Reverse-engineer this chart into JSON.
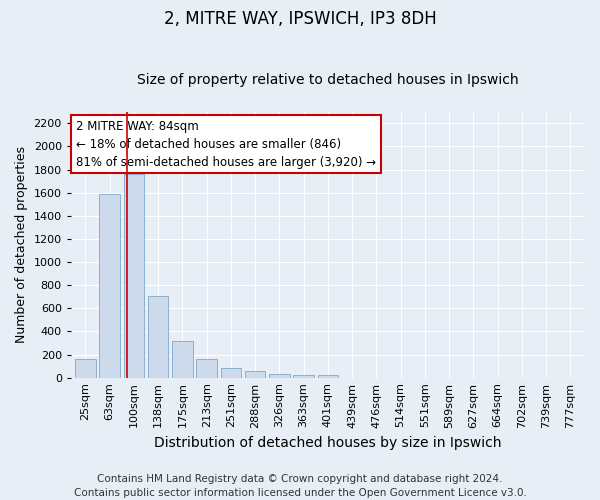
{
  "title1": "2, MITRE WAY, IPSWICH, IP3 8DH",
  "title2": "Size of property relative to detached houses in Ipswich",
  "xlabel": "Distribution of detached houses by size in Ipswich",
  "ylabel": "Number of detached properties",
  "categories": [
    "25sqm",
    "63sqm",
    "100sqm",
    "138sqm",
    "175sqm",
    "213sqm",
    "251sqm",
    "288sqm",
    "326sqm",
    "363sqm",
    "401sqm",
    "439sqm",
    "476sqm",
    "514sqm",
    "551sqm",
    "589sqm",
    "627sqm",
    "664sqm",
    "702sqm",
    "739sqm",
    "777sqm"
  ],
  "values": [
    160,
    1590,
    1760,
    710,
    315,
    160,
    85,
    55,
    30,
    20,
    20,
    0,
    0,
    0,
    0,
    0,
    0,
    0,
    0,
    0,
    0
  ],
  "bar_color": "#ccdaeb",
  "bar_edge_color": "#7fa8cc",
  "bar_width": 0.85,
  "vline_x": 1.72,
  "vline_color": "#cc0000",
  "annotation_line1": "2 MITRE WAY: 84sqm",
  "annotation_line2": "← 18% of detached houses are smaller (846)",
  "annotation_line3": "81% of semi-detached houses are larger (3,920) →",
  "annotation_box_color": "white",
  "annotation_box_edge_color": "#cc0000",
  "ylim": [
    0,
    2300
  ],
  "yticks": [
    0,
    200,
    400,
    600,
    800,
    1000,
    1200,
    1400,
    1600,
    1800,
    2000,
    2200
  ],
  "footnote": "Contains HM Land Registry data © Crown copyright and database right 2024.\nContains public sector information licensed under the Open Government Licence v3.0.",
  "bg_color": "#e8eef6",
  "plot_bg_color": "#e8eef6",
  "grid_color": "#ffffff",
  "title1_fontsize": 12,
  "title2_fontsize": 10,
  "xlabel_fontsize": 10,
  "ylabel_fontsize": 9,
  "tick_fontsize": 8,
  "annotation_fontsize": 8.5,
  "footnote_fontsize": 7.5
}
